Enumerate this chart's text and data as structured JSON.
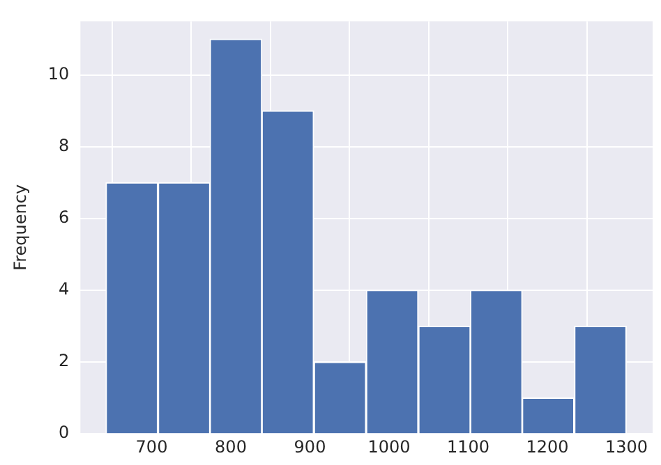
{
  "chart_data": {
    "type": "histogram",
    "ylabel": "Frequency",
    "bins": [
      642,
      708,
      774,
      839,
      905,
      971,
      1037,
      1103,
      1168,
      1234,
      1300
    ],
    "values": [
      7,
      7,
      11,
      9,
      2,
      4,
      3,
      4,
      1,
      3
    ],
    "color": "#4c72b0",
    "xlim": [
      610,
      1333
    ],
    "xticks": [
      700,
      800,
      900,
      1000,
      1100,
      1200,
      1300
    ],
    "ylim": [
      0,
      11.5
    ],
    "yticks": [
      0,
      2,
      4,
      6,
      8,
      10
    ],
    "grid": true,
    "legend": false
  }
}
